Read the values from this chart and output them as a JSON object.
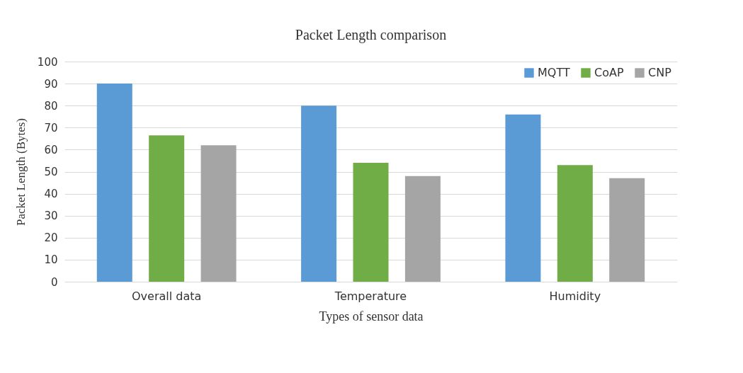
{
  "chart_data": {
    "type": "bar",
    "title": "Packet Length comparison",
    "xlabel": "Types of sensor data",
    "ylabel": "Packet Length (Bytes)",
    "categories": [
      "Overall data",
      "Temperature",
      "Humidity"
    ],
    "series": [
      {
        "name": "MQTT",
        "color": "#5b9bd5",
        "values": [
          90,
          80,
          76
        ]
      },
      {
        "name": "CoAP",
        "color": "#70ad47",
        "values": [
          66.5,
          54,
          53
        ]
      },
      {
        "name": "CNP",
        "color": "#a5a5a5",
        "values": [
          62,
          48,
          47
        ]
      }
    ],
    "ylim": [
      0,
      100
    ],
    "yticks": [
      0,
      10,
      20,
      30,
      40,
      50,
      60,
      70,
      80,
      90,
      100
    ],
    "grid": "y",
    "legend": "top right"
  }
}
